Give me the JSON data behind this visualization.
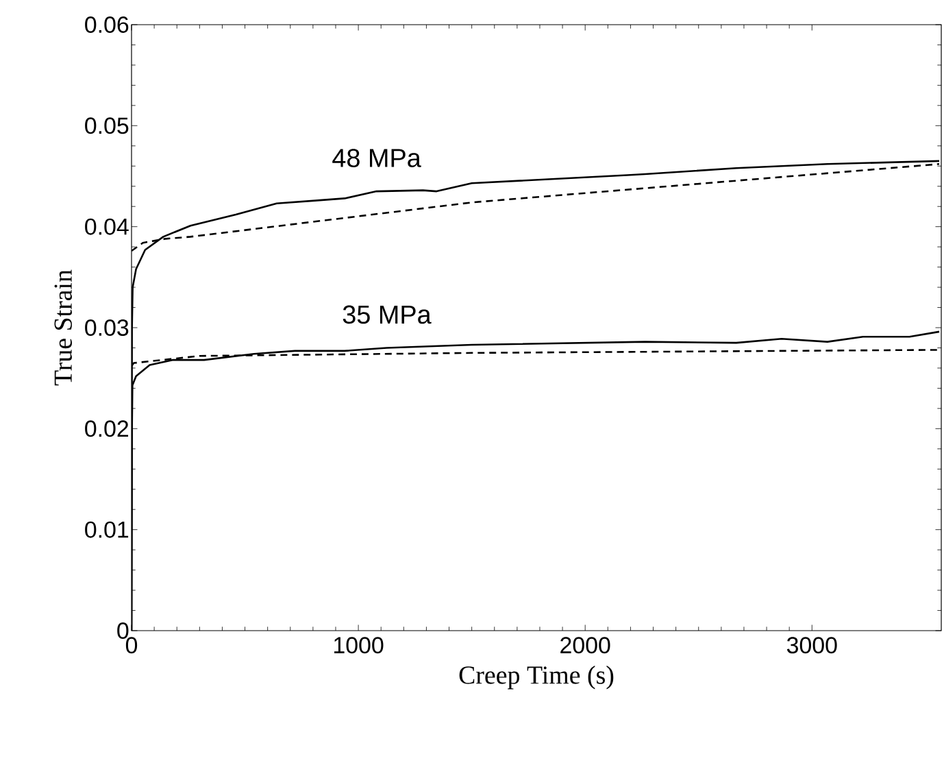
{
  "chart_data": {
    "type": "line",
    "xlabel": "Creep Time (s)",
    "ylabel": "True Strain",
    "xlim": [
      0,
      3570
    ],
    "ylim": [
      0,
      0.06
    ],
    "xticks": [
      0,
      1000,
      2000,
      3000
    ],
    "yticks": [
      0,
      0.01,
      0.02,
      0.03,
      0.04,
      0.05,
      0.06
    ],
    "grid": false,
    "legend": false,
    "marker": "none",
    "series": [
      {
        "name": "48 MPa",
        "color": "#000000",
        "line_style": "solid",
        "x": [
          0,
          2,
          5,
          20,
          60,
          140,
          260,
          460,
          640,
          820,
          940,
          1080,
          1285,
          1345,
          1500,
          2185,
          2264,
          2666,
          3068,
          3561
        ],
        "values": [
          0,
          0.03,
          0.034,
          0.0358,
          0.0377,
          0.039,
          0.0401,
          0.0412,
          0.0423,
          0.0426,
          0.0428,
          0.0435,
          0.0436,
          0.0435,
          0.0443,
          0.0451,
          0.0452,
          0.0458,
          0.0462,
          0.0465
        ]
      },
      {
        "color": "#000000",
        "line_style": "dashed",
        "x": [
          0,
          50,
          150,
          260,
          1500,
          3561
        ],
        "values": [
          0.0376,
          0.0384,
          0.0388,
          0.039,
          0.0424,
          0.0462
        ]
      },
      {
        "name": "35 MPa",
        "color": "#000000",
        "line_style": "solid",
        "x": [
          0,
          2,
          4,
          20,
          80,
          180,
          320,
          540,
          720,
          940,
          1125,
          1500,
          2264,
          2666,
          2866,
          3068,
          3225,
          3430,
          3561
        ],
        "values": [
          0,
          0.02,
          0.0243,
          0.0252,
          0.0263,
          0.0268,
          0.0268,
          0.0274,
          0.0277,
          0.0277,
          0.028,
          0.0283,
          0.0286,
          0.0285,
          0.0289,
          0.0286,
          0.0291,
          0.0291,
          0.0296
        ]
      },
      {
        "color": "#000000",
        "line_style": "dashed",
        "x": [
          0,
          10,
          300,
          1500,
          3561
        ],
        "values": [
          0.0262,
          0.0265,
          0.0272,
          0.0275,
          0.0278
        ]
      }
    ]
  }
}
